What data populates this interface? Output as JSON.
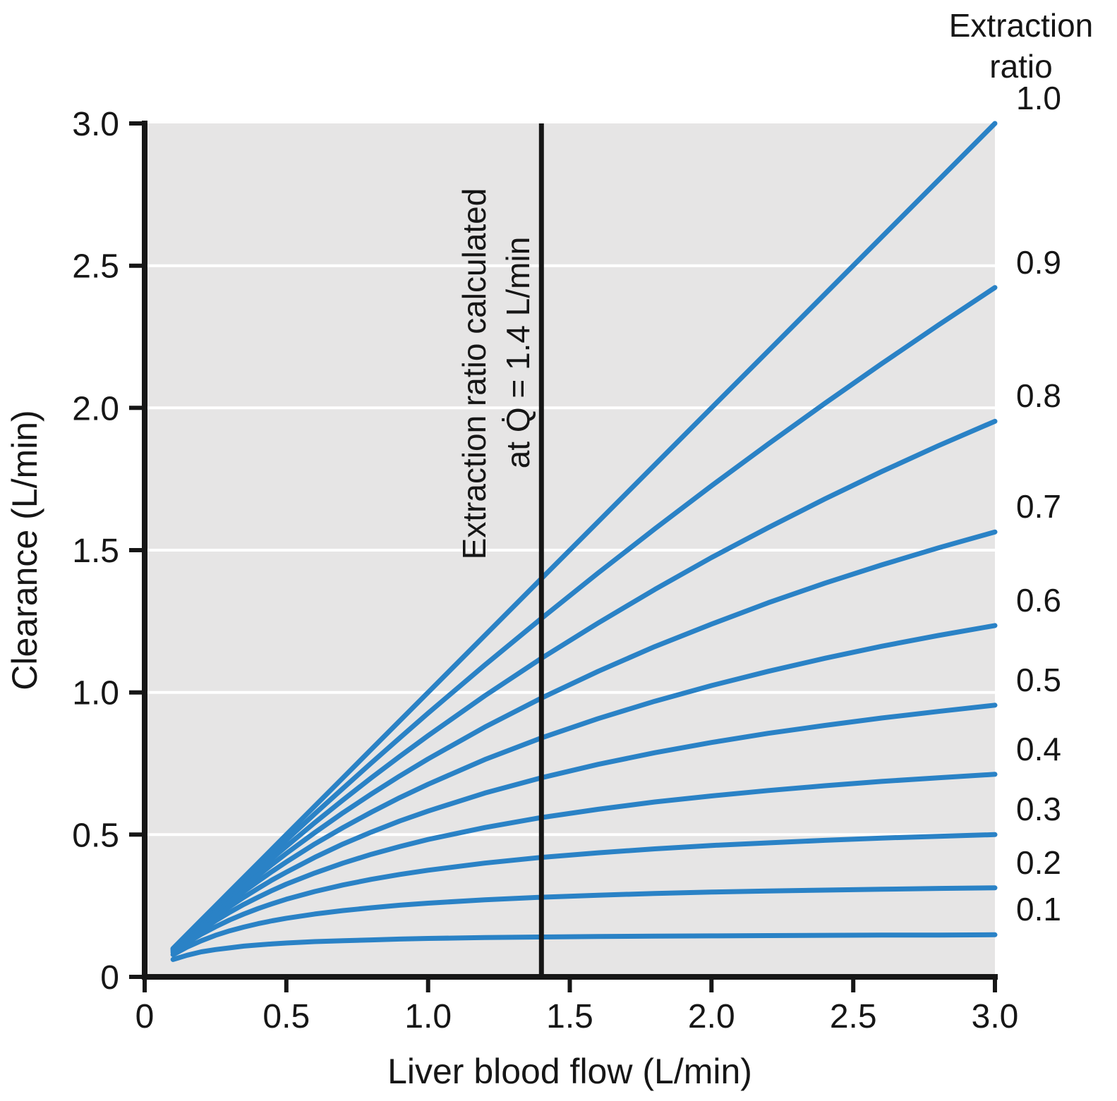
{
  "figure": {
    "background": "#ffffff"
  },
  "chart_data": {
    "type": "line",
    "title": "",
    "xlabel": "Liver blood flow (L/min)",
    "ylabel": "Clearance (L/min)",
    "xlim": [
      0,
      3
    ],
    "ylim": [
      0,
      3
    ],
    "xticks": [
      0,
      0.5,
      1.0,
      1.5,
      2.0,
      2.5,
      3.0
    ],
    "xtick_labels": [
      "0",
      "0.5",
      "1.0",
      "1.5",
      "2.0",
      "2.5",
      "3.0"
    ],
    "yticks": [
      0,
      0.5,
      1.0,
      1.5,
      2.0,
      2.5,
      3.0
    ],
    "ytick_labels": [
      "0",
      "0.5",
      "1.0",
      "1.5",
      "2.0",
      "2.5",
      "3.0"
    ],
    "gridlines_y": [
      0.5,
      1.0,
      1.5,
      2.0,
      2.5
    ],
    "grid_on": true,
    "grid_color": "#ffffff",
    "plot_bg": "#e6e5e5",
    "line_color": "#2a82c6",
    "axis_color": "#161616",
    "legend_position": "right-outside",
    "legend_title_line1": "Extraction",
    "legend_title_line2": "ratio",
    "annotation": {
      "x": 1.4,
      "line1": "Extraction ratio calculated",
      "line2": "at Q̇ = 1.4 L/min"
    },
    "x": [
      0.1,
      0.15,
      0.2,
      0.25,
      0.3,
      0.35,
      0.4,
      0.45,
      0.5,
      0.6,
      0.7,
      0.8,
      0.9,
      1.0,
      1.2,
      1.4,
      1.6,
      1.8,
      2.0,
      2.2,
      2.4,
      2.6,
      2.8,
      3.0
    ],
    "series": [
      {
        "name": "1.0",
        "extraction_ratio": 1.0,
        "values": [
          0.1,
          0.15,
          0.2,
          0.25,
          0.3,
          0.35,
          0.4,
          0.45,
          0.5,
          0.6,
          0.7,
          0.8,
          0.9,
          1.0,
          1.2,
          1.4,
          1.6,
          1.8,
          2.0,
          2.2,
          2.4,
          2.6,
          2.8,
          3.0
        ]
      },
      {
        "name": "0.9",
        "extraction_ratio": 0.9,
        "values": [
          0.099,
          0.148,
          0.197,
          0.245,
          0.293,
          0.341,
          0.388,
          0.434,
          0.481,
          0.573,
          0.663,
          0.752,
          0.84,
          0.927,
          1.096,
          1.26,
          1.42,
          1.575,
          1.726,
          1.873,
          2.016,
          2.155,
          2.291,
          2.423
        ]
      },
      {
        "name": "0.8",
        "extraction_ratio": 0.8,
        "values": [
          0.098,
          0.146,
          0.193,
          0.239,
          0.285,
          0.329,
          0.373,
          0.417,
          0.459,
          0.542,
          0.622,
          0.7,
          0.775,
          0.848,
          0.988,
          1.12,
          1.244,
          1.362,
          1.474,
          1.579,
          1.68,
          1.776,
          1.867,
          1.953
        ]
      },
      {
        "name": "0.7",
        "extraction_ratio": 0.7,
        "values": [
          0.097,
          0.143,
          0.189,
          0.232,
          0.275,
          0.316,
          0.356,
          0.396,
          0.434,
          0.507,
          0.577,
          0.643,
          0.706,
          0.766,
          0.878,
          0.98,
          1.074,
          1.161,
          1.24,
          1.315,
          1.384,
          1.448,
          1.508,
          1.564
        ]
      },
      {
        "name": "0.6",
        "extraction_ratio": 0.6,
        "values": [
          0.095,
          0.14,
          0.183,
          0.223,
          0.263,
          0.3,
          0.336,
          0.371,
          0.404,
          0.467,
          0.525,
          0.579,
          0.63,
          0.677,
          0.764,
          0.84,
          0.908,
          0.969,
          1.024,
          1.074,
          1.12,
          1.162,
          1.2,
          1.235
        ]
      },
      {
        "name": "0.5",
        "extraction_ratio": 0.5,
        "values": [
          0.093,
          0.135,
          0.175,
          0.212,
          0.247,
          0.28,
          0.311,
          0.341,
          0.368,
          0.42,
          0.467,
          0.509,
          0.548,
          0.583,
          0.646,
          0.7,
          0.747,
          0.788,
          0.824,
          0.856,
          0.884,
          0.91,
          0.933,
          0.955
        ]
      },
      {
        "name": "0.4",
        "extraction_ratio": 0.4,
        "values": [
          0.09,
          0.129,
          0.165,
          0.197,
          0.227,
          0.255,
          0.28,
          0.304,
          0.326,
          0.365,
          0.4,
          0.431,
          0.458,
          0.483,
          0.525,
          0.56,
          0.589,
          0.615,
          0.636,
          0.655,
          0.672,
          0.687,
          0.7,
          0.712
        ]
      },
      {
        "name": "0.3",
        "extraction_ratio": 0.3,
        "values": [
          0.086,
          0.12,
          0.15,
          0.176,
          0.2,
          0.221,
          0.24,
          0.257,
          0.273,
          0.3,
          0.323,
          0.343,
          0.36,
          0.375,
          0.4,
          0.42,
          0.436,
          0.45,
          0.462,
          0.471,
          0.48,
          0.488,
          0.494,
          0.5
        ]
      },
      {
        "name": "0.2",
        "extraction_ratio": 0.2,
        "values": [
          0.078,
          0.105,
          0.127,
          0.146,
          0.162,
          0.175,
          0.187,
          0.197,
          0.206,
          0.221,
          0.233,
          0.243,
          0.252,
          0.259,
          0.271,
          0.28,
          0.287,
          0.293,
          0.298,
          0.302,
          0.305,
          0.308,
          0.311,
          0.313
        ]
      },
      {
        "name": "0.1",
        "extraction_ratio": 0.1,
        "values": [
          0.061,
          0.076,
          0.088,
          0.096,
          0.102,
          0.108,
          0.112,
          0.116,
          0.119,
          0.124,
          0.127,
          0.13,
          0.133,
          0.135,
          0.138,
          0.14,
          0.142,
          0.143,
          0.144,
          0.145,
          0.146,
          0.147,
          0.147,
          0.148
        ]
      }
    ]
  }
}
